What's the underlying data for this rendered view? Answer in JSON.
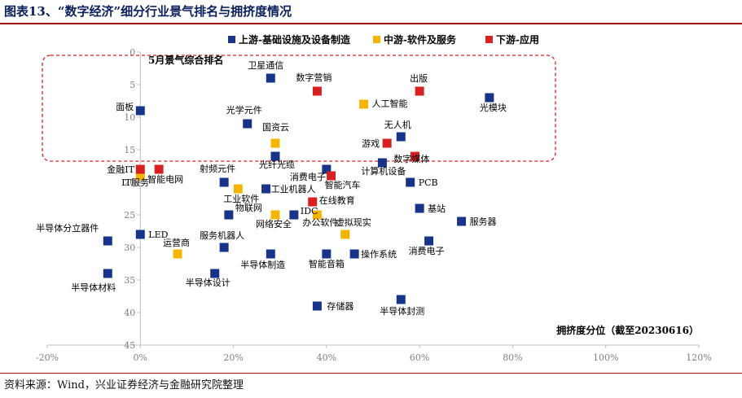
{
  "header": {
    "title": "图表13、“数字经济”细分行业景气排名与拥挤度情况"
  },
  "footer": {
    "source": "资料来源：Wind，兴业证券经济与金融研究院整理"
  },
  "colors": {
    "上游": "#17338a",
    "中游": "#f5b400",
    "下游": "#d72020",
    "accent": "#a31515",
    "axis": "#bfbfbf"
  },
  "chart_data": {
    "type": "scatter",
    "title": "",
    "xlabel": "拥挤度分位（截至20230616）",
    "ylabel": "5月景气综合排名",
    "xlim": [
      -0.2,
      1.2
    ],
    "ylim": [
      45,
      0
    ],
    "y_reversed": true,
    "x_ticks": [
      -0.2,
      0,
      0.2,
      0.4,
      0.6,
      0.8,
      1.0,
      1.2
    ],
    "x_tick_labels": [
      "-20%",
      "0%",
      "20%",
      "40%",
      "60%",
      "80%",
      "100%",
      "120%"
    ],
    "y_ticks": [
      0,
      5,
      10,
      15,
      20,
      25,
      30,
      35,
      40,
      45
    ],
    "y_tick_labels": [
      "0",
      "5",
      "10",
      "15",
      "20",
      "25",
      "30",
      "35",
      "40",
      "45"
    ],
    "grid": false,
    "legend_position": "top-right",
    "highlight_region_ranks": [
      1,
      15
    ],
    "series": [
      {
        "name": "上游-基础设施及设备制造",
        "color_key": "上游",
        "points": [
          {
            "label": "卫星通信",
            "x": 0.28,
            "y": 4
          },
          {
            "label": "光模块",
            "x": 0.75,
            "y": 7
          },
          {
            "label": "面板",
            "x": 0.0,
            "y": 9
          },
          {
            "label": "光学元件",
            "x": 0.23,
            "y": 11
          },
          {
            "label": "无人机",
            "x": 0.56,
            "y": 13
          },
          {
            "label": "光纤光缆",
            "x": 0.29,
            "y": 16
          },
          {
            "label": "计算机设备",
            "x": 0.52,
            "y": 17
          },
          {
            "label": "消费电子",
            "x": 0.4,
            "y": 18
          },
          {
            "label": "射频元件",
            "x": 0.18,
            "y": 20
          },
          {
            "label": "PCB",
            "x": 0.58,
            "y": 20
          },
          {
            "label": "工业机器人",
            "x": 0.27,
            "y": 21
          },
          {
            "label": "物联网",
            "x": 0.19,
            "y": 25
          },
          {
            "label": "IDC",
            "x": 0.33,
            "y": 25
          },
          {
            "label": "基站",
            "x": 0.6,
            "y": 24
          },
          {
            "label": "服务器",
            "x": 0.69,
            "y": 26
          },
          {
            "label": "LED",
            "x": 0.0,
            "y": 28
          },
          {
            "label": "半导体分立器件",
            "x": -0.07,
            "y": 29
          },
          {
            "label": "消费电子",
            "x": 0.62,
            "y": 29
          },
          {
            "label": "服务机器人",
            "x": 0.18,
            "y": 30
          },
          {
            "label": "半导体制造",
            "x": 0.28,
            "y": 31
          },
          {
            "label": "智能音箱",
            "x": 0.4,
            "y": 31
          },
          {
            "label": "操作系统",
            "x": 0.46,
            "y": 31
          },
          {
            "label": "半导体材料",
            "x": -0.07,
            "y": 34
          },
          {
            "label": "半导体设计",
            "x": 0.16,
            "y": 34
          },
          {
            "label": "半导体封测",
            "x": 0.56,
            "y": 38
          },
          {
            "label": "存储器",
            "x": 0.38,
            "y": 39
          }
        ]
      },
      {
        "name": "中游-软件及服务",
        "color_key": "中游",
        "points": [
          {
            "label": "人工智能",
            "x": 0.48,
            "y": 8
          },
          {
            "label": "国资云",
            "x": 0.29,
            "y": 14
          },
          {
            "label": "IT服务",
            "x": 0.0,
            "y": 19
          },
          {
            "label": "工业软件",
            "x": 0.21,
            "y": 21
          },
          {
            "label": "网络安全",
            "x": 0.29,
            "y": 25
          },
          {
            "label": "办公软件",
            "x": 0.38,
            "y": 25
          },
          {
            "label": "虚拟现实",
            "x": 0.44,
            "y": 28
          },
          {
            "label": "运营商",
            "x": 0.08,
            "y": 31
          }
        ]
      },
      {
        "name": "下游-应用",
        "color_key": "下游",
        "points": [
          {
            "label": "数字营销",
            "x": 0.38,
            "y": 6
          },
          {
            "label": "出版",
            "x": 0.6,
            "y": 6
          },
          {
            "label": "游戏",
            "x": 0.53,
            "y": 14
          },
          {
            "label": "数字媒体",
            "x": 0.59,
            "y": 16
          },
          {
            "label": "金融IT",
            "x": 0.0,
            "y": 18
          },
          {
            "label": "智能电网",
            "x": 0.04,
            "y": 18
          },
          {
            "label": "智能汽车",
            "x": 0.41,
            "y": 19
          },
          {
            "label": "在线教育",
            "x": 0.37,
            "y": 23
          }
        ]
      }
    ]
  }
}
